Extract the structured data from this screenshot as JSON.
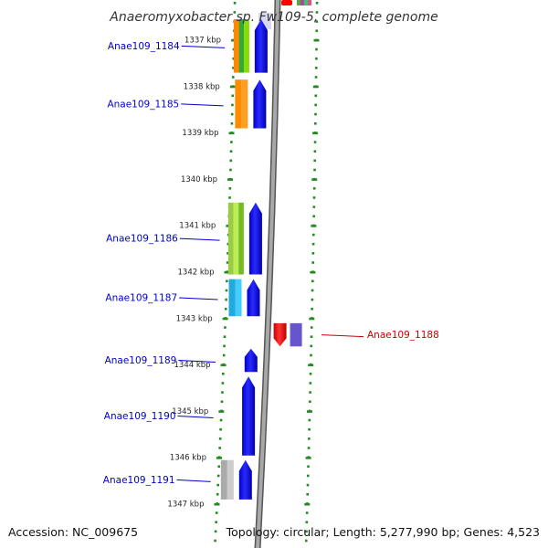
{
  "title": "Anaeromyxobacter sp. Fw109-5, complete genome",
  "accession": "Accession: NC_009675",
  "topology_summary": "Topology: circular; Length: 5,277,990 bp; Genes: 4,523",
  "colors": {
    "backbone": "#8c8c8c",
    "tick_green": "#228B22",
    "label_blue": "#0000cc",
    "label_red": "#cc0000",
    "gene_blue": "#0000ff",
    "gene_red": "#ff0000",
    "gene_violet": "#6655cc"
  },
  "kbp_ticks": [
    {
      "label": "1337 kbp",
      "kbp": 1337
    },
    {
      "label": "1338 kbp",
      "kbp": 1338
    },
    {
      "label": "1339 kbp",
      "kbp": 1339
    },
    {
      "label": "1340 kbp",
      "kbp": 1340
    },
    {
      "label": "1341 kbp",
      "kbp": 1341
    },
    {
      "label": "1342 kbp",
      "kbp": 1342
    },
    {
      "label": "1343 kbp",
      "kbp": 1343
    },
    {
      "label": "1344 kbp",
      "kbp": 1344
    },
    {
      "label": "1345 kbp",
      "kbp": 1345
    },
    {
      "label": "1346 kbp",
      "kbp": 1346
    },
    {
      "label": "1347 kbp",
      "kbp": 1347
    }
  ],
  "genes": [
    {
      "label": "Anae109_1184",
      "start_kbp": 1336.55,
      "end_kbp": 1337.7,
      "strand": "forward",
      "color": "#0000ff",
      "cog_colors": [
        "#ff8800",
        "#33aa33",
        "#88dd00"
      ]
    },
    {
      "label": "Anae109_1185",
      "start_kbp": 1337.85,
      "end_kbp": 1338.9,
      "strand": "forward",
      "color": "#0000ff",
      "cog_colors": [
        "#ff8c00",
        "#ff9e20"
      ]
    },
    {
      "label": "Anae109_1186",
      "start_kbp": 1340.5,
      "end_kbp": 1342.05,
      "strand": "forward",
      "color": "#0000ff",
      "cog_colors": [
        "#99cc44",
        "#bbee55",
        "#77bb22"
      ]
    },
    {
      "label": "Anae109_1187",
      "start_kbp": 1342.15,
      "end_kbp": 1342.95,
      "strand": "forward",
      "color": "#0000ff",
      "cog_colors": [
        "#22aadd",
        "#44ccff"
      ]
    },
    {
      "label": "Anae109_1188",
      "start_kbp": 1343.1,
      "end_kbp": 1343.6,
      "strand": "reverse",
      "color": "#ff0000",
      "cog_colors": [
        "#6655cc"
      ]
    },
    {
      "label": "Anae109_1189",
      "start_kbp": 1343.65,
      "end_kbp": 1344.15,
      "strand": "forward",
      "color": "#0000ff",
      "cog_colors": []
    },
    {
      "label": "Anae109_1190",
      "start_kbp": 1344.25,
      "end_kbp": 1345.95,
      "strand": "forward",
      "color": "#0000ff",
      "cog_colors": []
    },
    {
      "label": "Anae109_1191",
      "start_kbp": 1346.05,
      "end_kbp": 1346.9,
      "strand": "forward",
      "color": "#0000ff",
      "cog_colors": [
        "#aaaaaa",
        "#cccccc"
      ]
    }
  ]
}
